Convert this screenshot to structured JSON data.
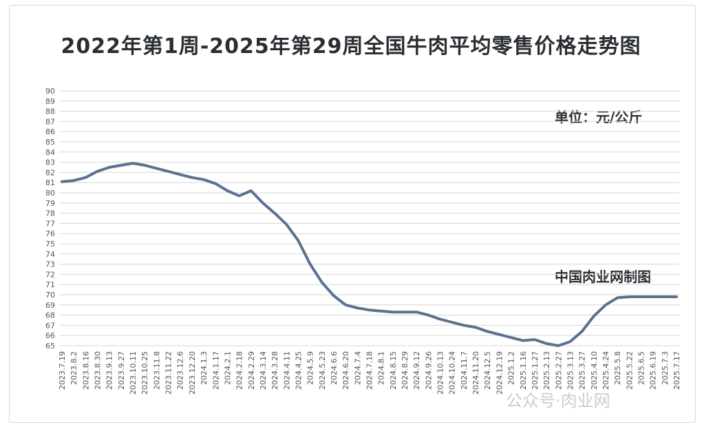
{
  "chart_data": {
    "type": "line",
    "title": "2022年第1周-2025年第29周全国牛肉平均零售价格走势图",
    "unit_label": "单位：元/公斤",
    "source_label": "中国肉业网制图",
    "watermark": "公众号·肉业网",
    "ylim": [
      65,
      90
    ],
    "y_ticks": [
      65,
      66,
      67,
      68,
      69,
      70,
      71,
      72,
      73,
      74,
      75,
      76,
      77,
      78,
      79,
      80,
      81,
      82,
      83,
      84,
      85,
      86,
      87,
      88,
      89,
      90
    ],
    "grid": true,
    "line_color": "#5a7190",
    "x_tick_labels": [
      "2023.7.19",
      "2023.8.2",
      "2023.8.16",
      "2023.8.30",
      "2023.9.13",
      "2023.9.27",
      "2023.10.11",
      "2023.10.25",
      "2023.11.8",
      "2023.11.22",
      "2023.12.6",
      "2023.12.20",
      "2024.1.3",
      "2024.1.17",
      "2024.2.1",
      "2024.2.18",
      "2024.2.29",
      "2024.3.14",
      "2024.3.28",
      "2024.4.11",
      "2024.4.25",
      "2024.5.9",
      "2024.5.23",
      "2024.6.6",
      "2024.6.20",
      "2024.7.4",
      "2024.7.18",
      "2024.8.1",
      "2024.8.15",
      "2024.8.29",
      "2024.9.12",
      "2024.9.26",
      "2024.10.13",
      "2024.10.24",
      "2024.11.7",
      "2024.11.20",
      "2024.12.5",
      "2024.12.19",
      "2025.1.2",
      "2025.1.16",
      "2025.1.27",
      "2025.2.13",
      "2025.2.27",
      "2025.3.13",
      "2025.3.27",
      "2025.4.10",
      "2025.4.24",
      "2025.5.8",
      "2025.5.22",
      "2025.6.5",
      "2025.6.19",
      "2025.7.3",
      "2025.7.17"
    ],
    "series": [
      {
        "values": [
          81.1,
          81.2,
          81.5,
          82.1,
          82.5,
          82.7,
          82.9,
          82.7,
          82.4,
          82.1,
          81.8,
          81.5,
          81.3,
          80.9,
          80.2,
          79.7,
          80.2,
          79.0,
          78.0,
          76.9,
          75.3,
          73.0,
          71.2,
          69.9,
          69.0,
          68.7,
          68.5,
          68.4,
          68.3,
          68.3,
          68.3,
          68.0,
          67.6,
          67.3,
          67.0,
          66.8,
          66.4,
          66.1,
          65.8,
          65.5,
          65.6,
          65.2,
          65.0,
          65.4,
          66.4,
          67.9,
          69.0,
          69.7,
          69.8,
          69.8,
          69.8,
          69.8,
          69.8
        ]
      }
    ]
  }
}
